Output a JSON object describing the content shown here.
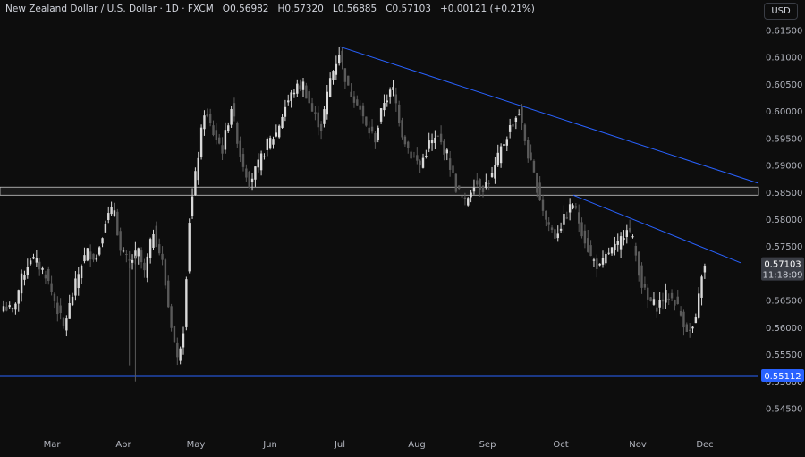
{
  "legend": {
    "symbol": "New Zealand Dollar / U.S. Dollar · 1D · FXCM",
    "open_label": "O",
    "open": "0.56982",
    "high_label": "H",
    "high": "0.57320",
    "low_label": "L",
    "low": "0.56885",
    "close_label": "C",
    "close": "0.57103",
    "change": "+0.00121 (+0.21%)"
  },
  "currency_button": "USD",
  "price_badge": {
    "price": "0.57103",
    "countdown": "11:18:09"
  },
  "support_badge": {
    "price": "0.55112"
  },
  "colors": {
    "background": "#0d0d0d",
    "candle_up": "#d9d9d9",
    "candle_down": "#5a5a5a",
    "trendline": "#2962ff",
    "zone_border": "#c8c8c8",
    "badge_blue": "#2962ff",
    "badge_gray": "#3a3d45"
  },
  "chart_data": {
    "type": "candlestick",
    "ylim": [
      0.5435,
      0.616
    ],
    "y_ticks": [
      "0.61500",
      "0.61000",
      "0.60500",
      "0.60000",
      "0.59500",
      "0.59000",
      "0.58500",
      "0.58000",
      "0.57500",
      "0.57000",
      "0.56500",
      "0.56000",
      "0.55500",
      "0.55000",
      "0.54500"
    ],
    "x_labels": [
      "Mar",
      "Apr",
      "May",
      "Jun",
      "Jul",
      "Aug",
      "Sep",
      "Oct",
      "Nov",
      "Dec"
    ],
    "last_close": 0.57103,
    "horizontal_support": 0.55112,
    "resistance_zone": [
      0.5845,
      0.586
    ],
    "trendlines": [
      {
        "from": [
          "Jul",
          0.612
        ],
        "to": [
          "Dec",
          0.5867
        ]
      },
      {
        "from": [
          "Oct",
          0.5845
        ],
        "to": [
          "Dec",
          0.572
        ]
      }
    ],
    "anchors": [
      [
        0,
        0.564
      ],
      [
        3,
        0.563
      ],
      [
        6,
        0.569
      ],
      [
        9,
        0.573
      ],
      [
        11,
        0.572
      ],
      [
        14,
        0.57
      ],
      [
        17,
        0.565
      ],
      [
        20,
        0.56
      ],
      [
        23,
        0.566
      ],
      [
        26,
        0.572
      ],
      [
        28,
        0.574
      ],
      [
        31,
        0.573
      ],
      [
        34,
        0.58
      ],
      [
        37,
        0.582
      ],
      [
        39,
        0.574
      ],
      [
        42,
        0.572
      ],
      [
        45,
        0.574
      ],
      [
        47,
        0.57
      ],
      [
        50,
        0.578
      ],
      [
        53,
        0.572
      ],
      [
        55,
        0.564
      ],
      [
        58,
        0.554
      ],
      [
        60,
        0.56
      ],
      [
        62,
        0.58
      ],
      [
        64,
        0.588
      ],
      [
        67,
        0.6
      ],
      [
        70,
        0.596
      ],
      [
        73,
        0.593
      ],
      [
        76,
        0.601
      ],
      [
        79,
        0.592
      ],
      [
        82,
        0.587
      ],
      [
        85,
        0.59
      ],
      [
        88,
        0.594
      ],
      [
        91,
        0.596
      ],
      [
        94,
        0.601
      ],
      [
        97,
        0.604
      ],
      [
        100,
        0.605
      ],
      [
        103,
        0.6
      ],
      [
        106,
        0.597
      ],
      [
        109,
        0.606
      ],
      [
        112,
        0.611
      ],
      [
        115,
        0.604
      ],
      [
        118,
        0.602
      ],
      [
        121,
        0.597
      ],
      [
        124,
        0.595
      ],
      [
        127,
        0.602
      ],
      [
        130,
        0.604
      ],
      [
        133,
        0.596
      ],
      [
        136,
        0.592
      ],
      [
        139,
        0.59
      ],
      [
        142,
        0.594
      ],
      [
        145,
        0.595
      ],
      [
        148,
        0.592
      ],
      [
        151,
        0.586
      ],
      [
        154,
        0.583
      ],
      [
        157,
        0.587
      ],
      [
        160,
        0.586
      ],
      [
        163,
        0.588
      ],
      [
        166,
        0.593
      ],
      [
        169,
        0.597
      ],
      [
        172,
        0.6
      ],
      [
        175,
        0.592
      ],
      [
        178,
        0.586
      ],
      [
        181,
        0.58
      ],
      [
        184,
        0.577
      ],
      [
        187,
        0.58
      ],
      [
        190,
        0.583
      ],
      [
        193,
        0.578
      ],
      [
        196,
        0.573
      ],
      [
        199,
        0.571
      ],
      [
        202,
        0.574
      ],
      [
        205,
        0.575
      ],
      [
        208,
        0.579
      ],
      [
        210,
        0.576
      ],
      [
        213,
        0.568
      ],
      [
        215,
        0.565
      ],
      [
        218,
        0.564
      ],
      [
        221,
        0.566
      ],
      [
        224,
        0.565
      ],
      [
        227,
        0.561
      ],
      [
        229,
        0.559
      ],
      [
        231,
        0.561
      ],
      [
        233,
        0.57
      ],
      [
        234,
        0.571
      ]
    ]
  }
}
